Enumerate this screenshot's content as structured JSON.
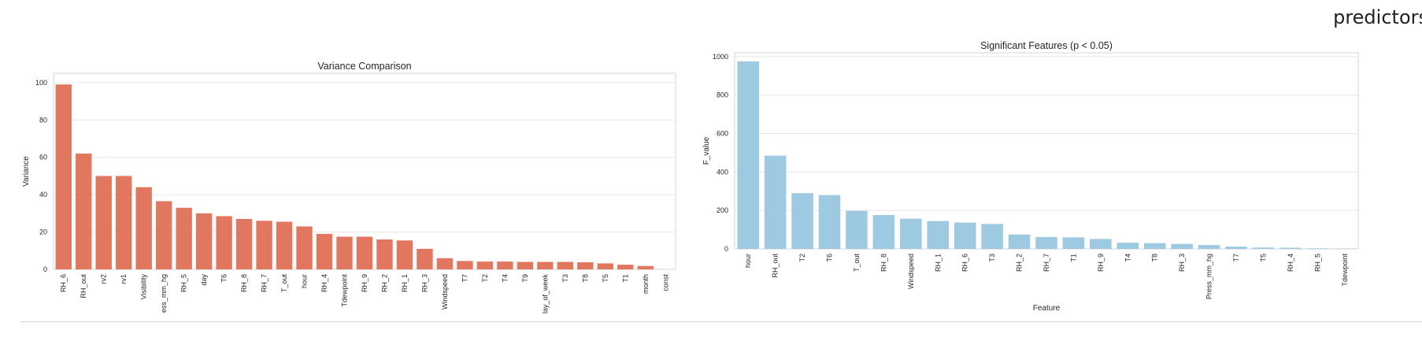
{
  "header": {
    "predictors_text": "predictors"
  },
  "chart_data": [
    {
      "type": "bar",
      "title": "Variance Comparison",
      "xlabel": "",
      "ylabel": "Variance",
      "ylim": [
        0,
        105
      ],
      "yticks": [
        0,
        20,
        40,
        60,
        80,
        100
      ],
      "grid": true,
      "bar_color": "#e1775e",
      "categories": [
        "RH_6",
        "RH_out",
        "rv2",
        "rv1",
        "Visibility",
        "ess_mm_hg",
        "RH_5",
        "day",
        "T6",
        "RH_8",
        "RH_7",
        "T_out",
        "hour",
        "RH_4",
        "Tdewpoint",
        "RH_9",
        "RH_2",
        "RH_1",
        "RH_3",
        "Windspeed",
        "T7",
        "T2",
        "T4",
        "T9",
        "lay_of_week",
        "T3",
        "T8",
        "T5",
        "T1",
        "month",
        "const"
      ],
      "values": [
        99,
        62,
        50,
        50,
        44,
        36.5,
        33,
        30,
        28.5,
        27,
        26,
        25.5,
        23,
        19,
        17.5,
        17.5,
        16,
        15.5,
        11,
        6,
        4.5,
        4.2,
        4.2,
        4.0,
        4.0,
        4.0,
        3.8,
        3.2,
        2.5,
        1.8,
        0
      ]
    },
    {
      "type": "bar",
      "title": "Significant Features (p < 0.05)",
      "xlabel": "Feature",
      "ylabel": "F_value",
      "ylim": [
        0,
        1020
      ],
      "yticks": [
        0,
        200,
        400,
        600,
        800,
        1000
      ],
      "grid": true,
      "bar_color": "#9ecae1",
      "categories": [
        "hour",
        "RH_out",
        "T2",
        "T6",
        "T_out",
        "RH_8",
        "Windspeed",
        "RH_1",
        "RH_6",
        "T3",
        "RH_2",
        "RH_7",
        "T1",
        "RH_9",
        "T4",
        "T8",
        "RH_3",
        "Press_mm_hg",
        "T7",
        "T5",
        "RH_4",
        "RH_5",
        "Tdewpoint"
      ],
      "values": [
        975,
        485,
        290,
        280,
        198,
        176,
        157,
        145,
        137,
        130,
        75,
        62,
        60,
        52,
        32,
        30,
        26,
        20,
        12,
        7,
        6,
        3,
        2
      ]
    }
  ]
}
